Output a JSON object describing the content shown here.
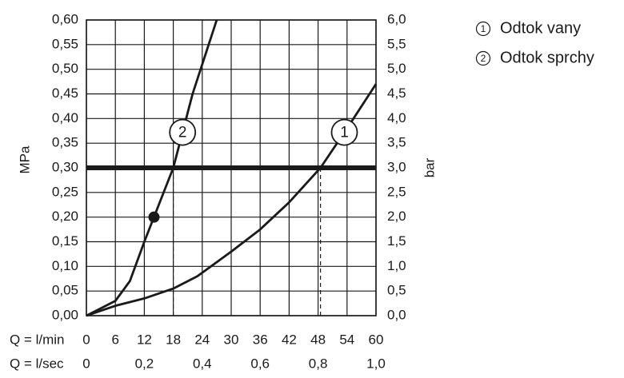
{
  "chart_data": {
    "type": "line",
    "xlabel": "Q = l/min",
    "x2label": "Q = l/sec",
    "ylabel": "MPa",
    "y2label": "bar",
    "xlim": [
      0,
      60
    ],
    "xticks": [
      0,
      6,
      12,
      18,
      24,
      30,
      36,
      42,
      48,
      54,
      60
    ],
    "x2lim": [
      0,
      1
    ],
    "x2ticks": [
      0,
      {
        "value": 0.2,
        "label": "0,2"
      },
      {
        "value": 0.4,
        "label": "0,4"
      },
      {
        "value": 0.6,
        "label": "0,6"
      },
      {
        "value": 0.8,
        "label": "0,8"
      },
      {
        "value": 1.0,
        "label": "1,0"
      }
    ],
    "ylim": [
      0,
      0.6
    ],
    "yticks": [
      {
        "value": 0,
        "label": "0,00"
      },
      {
        "value": 0.05,
        "label": "0,05"
      },
      {
        "value": 0.1,
        "label": "0,10"
      },
      {
        "value": 0.15,
        "label": "0,15"
      },
      {
        "value": 0.2,
        "label": "0,20"
      },
      {
        "value": 0.25,
        "label": "0,25"
      },
      {
        "value": 0.3,
        "label": "0,30"
      },
      {
        "value": 0.35,
        "label": "0,35"
      },
      {
        "value": 0.4,
        "label": "0,40"
      },
      {
        "value": 0.45,
        "label": "0,45"
      },
      {
        "value": 0.5,
        "label": "0,50"
      },
      {
        "value": 0.55,
        "label": "0,55"
      },
      {
        "value": 0.6,
        "label": "0,60"
      }
    ],
    "y2lim": [
      0,
      6
    ],
    "y2ticks": [
      {
        "value": 0,
        "label": "0,0"
      },
      {
        "value": 0.5,
        "label": "0,5"
      },
      {
        "value": 1,
        "label": "1,0"
      },
      {
        "value": 1.5,
        "label": "1,5"
      },
      {
        "value": 2,
        "label": "2,0"
      },
      {
        "value": 2.5,
        "label": "2,5"
      },
      {
        "value": 3,
        "label": "3,0"
      },
      {
        "value": 3.5,
        "label": "3,5"
      },
      {
        "value": 4,
        "label": "4,0"
      },
      {
        "value": 4.5,
        "label": "4,5"
      },
      {
        "value": 5,
        "label": "5,0"
      },
      {
        "value": 5.5,
        "label": "5,5"
      },
      {
        "value": 6,
        "label": "6,0"
      }
    ],
    "grid": true,
    "reference_line": 0.3,
    "point": {
      "x": 14,
      "y": 0.2
    },
    "series": [
      {
        "name": "Odtok vany",
        "label": "1",
        "color": "#1a1a1a",
        "x": [
          0,
          6,
          12,
          18,
          23,
          30,
          36,
          42,
          48.5,
          54,
          60
        ],
        "values": [
          0,
          0.02,
          0.035,
          0.055,
          0.08,
          0.13,
          0.175,
          0.23,
          0.3,
          0.38,
          0.47
        ]
      },
      {
        "name": "Odtok sprchy",
        "label": "2",
        "color": "#1a1a1a",
        "x": [
          0,
          6,
          9,
          12,
          14,
          18,
          22,
          27
        ],
        "values": [
          0,
          0.03,
          0.07,
          0.15,
          0.2,
          0.3,
          0.45,
          0.6
        ]
      }
    ]
  }
}
